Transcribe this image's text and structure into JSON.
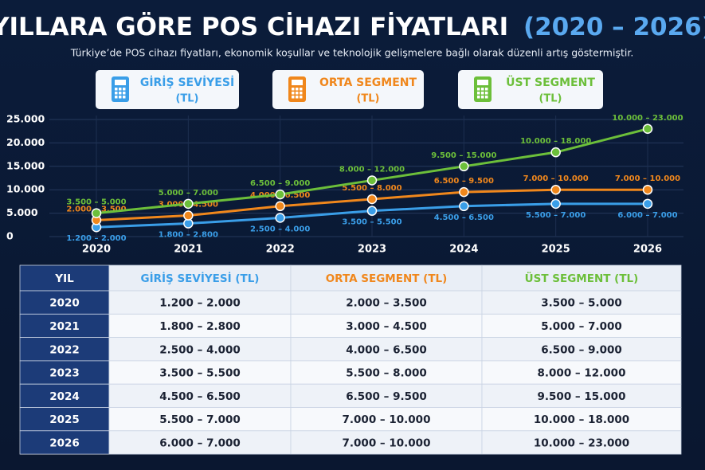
{
  "chart_data": {
    "type": "line",
    "title": "YILLARA GÖRE POS CİHAZI FİYATLARI",
    "title_highlight": "(2020 – 2026)",
    "subtitle": "Türkiye’de POS cihazı fiyatları, ekonomik koşullar ve teknolojik gelişmelere bağlı olarak düzenli artış göstermiştir.",
    "legend_unit": "(TL)",
    "categories": [
      "2020",
      "2021",
      "2022",
      "2023",
      "2024",
      "2025",
      "2026"
    ],
    "series": [
      {
        "name": "GİRİŞ SEVİYESİ",
        "color": "#3a9ee8",
        "values": [
          2000,
          2800,
          4000,
          5500,
          6500,
          7000,
          7000
        ],
        "value_labels": [
          "1.200 – 2.000",
          "1.800 – 2.800",
          "2.500 – 4.000",
          "3.500 – 5.500",
          "4.500 – 6.500",
          "5.500 – 7.000",
          "6.000 – 7.000"
        ]
      },
      {
        "name": "ORTA SEGMENT",
        "color": "#f0871c",
        "values": [
          3500,
          4500,
          6500,
          8000,
          9500,
          10000,
          10000
        ],
        "value_labels": [
          "2.000 – 3.500",
          "3.000 – 4.500",
          "4.000 – 6.500",
          "5.500 – 8.000",
          "6.500 – 9.500",
          "7.000 – 10.000",
          "7.000 – 10.000"
        ]
      },
      {
        "name": "ÜST SEGMENT",
        "color": "#6cbf3a",
        "values": [
          5000,
          7000,
          9000,
          12000,
          15000,
          18000,
          23000
        ],
        "value_labels": [
          "3.500 – 5.000",
          "5.000 – 7.000",
          "6.500 – 9.000",
          "8.000 – 12.000",
          "9.500 – 15.000",
          "10.000 – 18.000",
          "10.000 – 23.000"
        ]
      }
    ],
    "ylim": [
      0,
      25000
    ],
    "yticks": [
      0,
      {
        "value": 5000,
        "label": "5.000"
      },
      {
        "value": 10000,
        "label": "10.000"
      },
      {
        "value": 15000,
        "label": "15.000"
      },
      {
        "value": 20000,
        "label": "20.000"
      },
      {
        "value": 25000,
        "label": "25.000"
      }
    ],
    "grid": true
  },
  "table": {
    "headers": [
      "YIL",
      "GİRİŞ SEVİYESİ (TL)",
      "ORTA SEGMENT (TL)",
      "ÜST SEGMENT (TL)"
    ]
  }
}
